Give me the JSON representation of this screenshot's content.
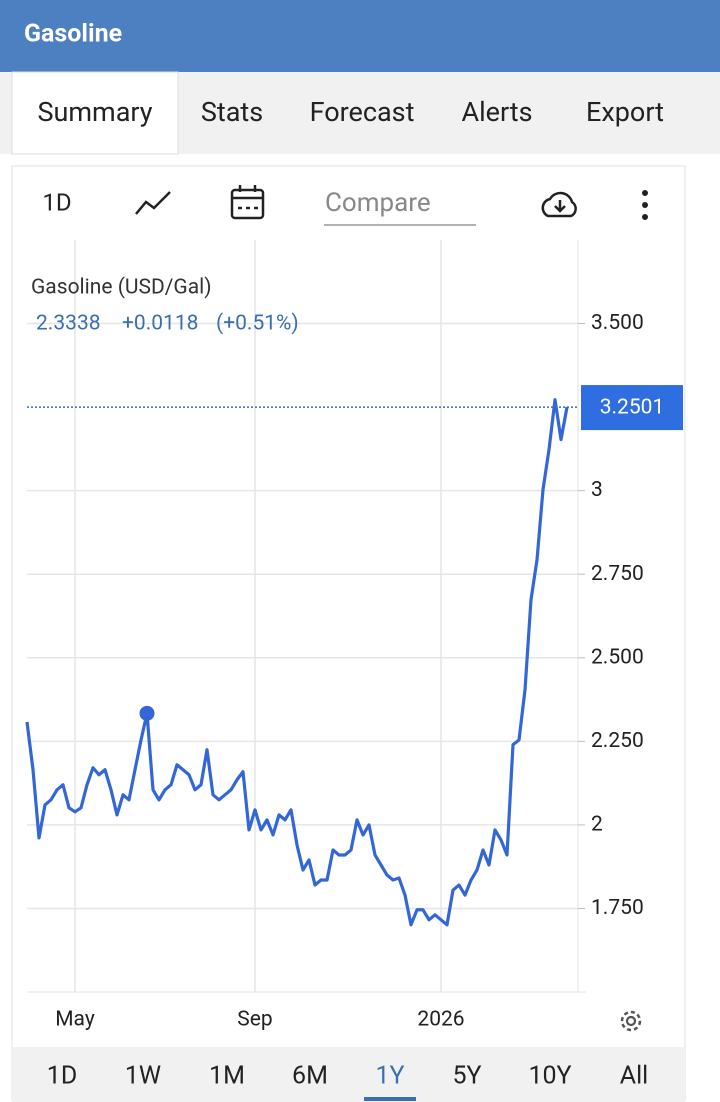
{
  "app": {
    "title": "Gasoline",
    "tabs": [
      "Summary",
      "Stats",
      "Forecast",
      "Alerts",
      "Export"
    ],
    "selected_tab": "Summary",
    "toolbar": {
      "interval": "1D",
      "compare_placeholder": "Compare"
    },
    "ranges": [
      "1D",
      "1W",
      "1M",
      "6M",
      "1Y",
      "5Y",
      "10Y",
      "All"
    ],
    "selected_range": "1Y"
  },
  "chart_data": {
    "type": "line",
    "title": "Gasoline (USD/Gal)",
    "legend_value": "2.3338",
    "change": "+0.0118",
    "change_pct": "(+0.51%)",
    "last_label": "3.2501",
    "color": "#3366d6",
    "grid": true,
    "categories": [
      "",
      "",
      "",
      "",
      "",
      "",
      "",
      "",
      "May",
      "",
      "",
      "",
      "",
      "",
      "",
      "",
      "",
      "",
      "",
      "",
      "",
      "",
      "",
      "",
      "",
      "",
      "",
      "",
      "",
      "",
      "",
      "",
      "",
      "",
      "",
      "",
      "",
      "",
      "Sep",
      "",
      "",
      "",
      "",
      "",
      "",
      "",
      "",
      "",
      "",
      "",
      "",
      "",
      "",
      "",
      "",
      "",
      "",
      "",
      "",
      "",
      "",
      "",
      "",
      "",
      "",
      "",
      "",
      "",
      "",
      "2026",
      "",
      "",
      "",
      "",
      "",
      "",
      "",
      "",
      "",
      "",
      "",
      "",
      "",
      "",
      "",
      "",
      "",
      "",
      "",
      "",
      ""
    ],
    "values": [
      2.308,
      2.165,
      1.961,
      2.06,
      2.075,
      2.105,
      2.12,
      2.051,
      2.039,
      2.051,
      2.12,
      2.171,
      2.15,
      2.165,
      2.105,
      2.03,
      2.09,
      2.075,
      2.165,
      2.254,
      2.3338,
      2.105,
      2.075,
      2.105,
      2.12,
      2.18,
      2.165,
      2.15,
      2.105,
      2.12,
      2.225,
      2.09,
      2.075,
      2.09,
      2.105,
      2.135,
      2.159,
      1.985,
      2.045,
      1.985,
      2.015,
      1.97,
      2.03,
      2.015,
      2.045,
      1.94,
      1.865,
      1.895,
      1.82,
      1.835,
      1.835,
      1.925,
      1.91,
      1.91,
      1.925,
      2.015,
      1.97,
      2.0,
      1.91,
      1.88,
      1.85,
      1.835,
      1.841,
      1.79,
      1.701,
      1.746,
      1.746,
      1.716,
      1.731,
      1.716,
      1.701,
      1.805,
      1.82,
      1.79,
      1.835,
      1.865,
      1.925,
      1.88,
      1.985,
      1.955,
      1.91,
      2.24,
      2.254,
      2.404,
      2.674,
      2.793,
      3.003,
      3.123,
      3.272,
      3.153,
      3.2501
    ],
    "ylim": [
      1.5,
      3.75
    ],
    "yticks": [
      {
        "value": 3.5,
        "label": "3.500"
      },
      3,
      {
        "value": 2.75,
        "label": "2.750"
      },
      {
        "value": 2.5,
        "label": "2.500"
      },
      {
        "value": 2.25,
        "label": "2.250"
      },
      2,
      {
        "value": 1.75,
        "label": "1.750"
      }
    ]
  }
}
